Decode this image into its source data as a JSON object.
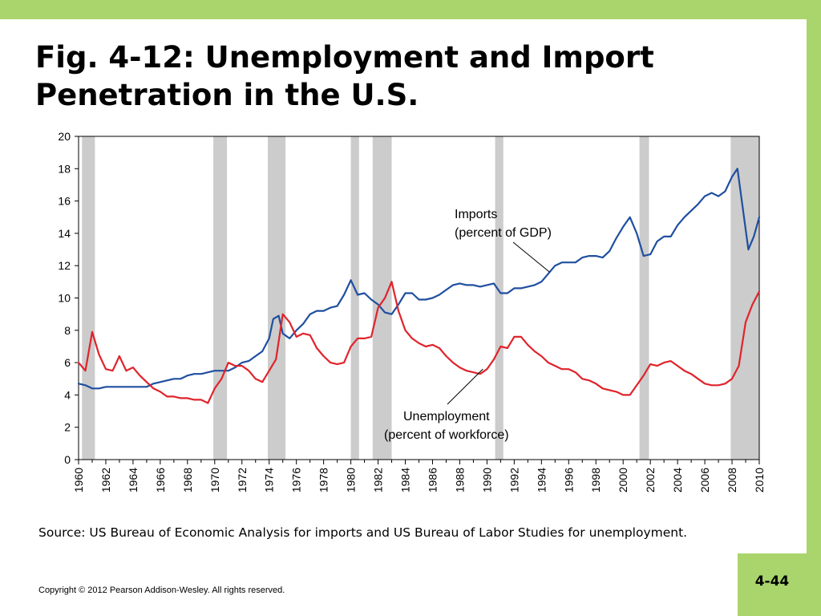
{
  "slide": {
    "title": "Fig. 4-12: Unemployment and Import Penetration in the U.S.",
    "source": "Source: US Bureau of Economic Analysis for imports and US Bureau of Labor Studies for unemployment.",
    "copyright": "Copyright © 2012 Pearson Addison-Wesley. All rights reserved.",
    "page_number": "4-44",
    "colors": {
      "frame": "#aad46c",
      "recession": "#cccccc"
    }
  },
  "chart_data": {
    "type": "line",
    "title": "",
    "xlabel": "",
    "ylabel": "",
    "xlim": [
      1960,
      2010
    ],
    "ylim": [
      0,
      20
    ],
    "y_ticks": [
      0,
      2,
      4,
      6,
      8,
      10,
      12,
      14,
      16,
      18,
      20
    ],
    "x_tick_labels": [
      "1960",
      "1962",
      "1964",
      "1966",
      "1968",
      "1970",
      "1972",
      "1974",
      "1976",
      "1978",
      "1980",
      "1982",
      "1984",
      "1986",
      "1988",
      "1990",
      "1992",
      "1994",
      "1996",
      "1998",
      "2000",
      "2002",
      "2004",
      "2006",
      "2008",
      "2010"
    ],
    "grid": false,
    "legend": "none",
    "recession_bands": [
      [
        1960.25,
        1961.2
      ],
      [
        1969.9,
        1970.9
      ],
      [
        1973.9,
        1975.2
      ],
      [
        1980.0,
        1980.6
      ],
      [
        1981.6,
        1983.0
      ],
      [
        1990.6,
        1991.2
      ],
      [
        2001.2,
        2001.9
      ],
      [
        2007.9,
        2010.0
      ]
    ],
    "series": [
      {
        "name": "Imports",
        "annotation": [
          "Imports",
          "(percent of GDP)"
        ],
        "color": "#1f4fa0",
        "x": [
          1960,
          1960.5,
          1961,
          1961.5,
          1962,
          1962.5,
          1963,
          1963.5,
          1964,
          1964.5,
          1965,
          1965.5,
          1966,
          1966.5,
          1967,
          1967.5,
          1968,
          1968.5,
          1969,
          1969.5,
          1970,
          1970.5,
          1971,
          1971.5,
          1972,
          1972.5,
          1973,
          1973.5,
          1974,
          1974.3,
          1974.7,
          1975,
          1975.5,
          1976,
          1976.5,
          1977,
          1977.5,
          1978,
          1978.5,
          1979,
          1979.5,
          1980,
          1980.5,
          1981,
          1981.5,
          1982,
          1982.5,
          1983,
          1983.5,
          1984,
          1984.5,
          1985,
          1985.5,
          1986,
          1986.5,
          1987,
          1987.5,
          1988,
          1988.5,
          1989,
          1989.5,
          1990,
          1990.5,
          1991,
          1991.5,
          1992,
          1992.5,
          1993,
          1993.5,
          1994,
          1994.5,
          1995,
          1995.5,
          1996,
          1996.5,
          1997,
          1997.5,
          1998,
          1998.5,
          1999,
          1999.5,
          2000,
          2000.5,
          2001,
          2001.5,
          2002,
          2002.5,
          2003,
          2003.5,
          2004,
          2004.5,
          2005,
          2005.5,
          2006,
          2006.5,
          2007,
          2007.5,
          2008,
          2008.4,
          2008.8,
          2009.2,
          2009.6,
          2010
        ],
        "values": [
          4.7,
          4.6,
          4.4,
          4.4,
          4.5,
          4.5,
          4.5,
          4.5,
          4.5,
          4.5,
          4.5,
          4.7,
          4.8,
          4.9,
          5.0,
          5.0,
          5.2,
          5.3,
          5.3,
          5.4,
          5.5,
          5.5,
          5.5,
          5.7,
          6.0,
          6.1,
          6.4,
          6.7,
          7.5,
          8.7,
          8.9,
          7.8,
          7.5,
          8.0,
          8.4,
          9.0,
          9.2,
          9.2,
          9.4,
          9.5,
          10.2,
          11.1,
          10.2,
          10.3,
          9.9,
          9.6,
          9.1,
          9.0,
          9.6,
          10.3,
          10.3,
          9.9,
          9.9,
          10.0,
          10.2,
          10.5,
          10.8,
          10.9,
          10.8,
          10.8,
          10.7,
          10.8,
          10.9,
          10.3,
          10.3,
          10.6,
          10.6,
          10.7,
          10.8,
          11.0,
          11.5,
          12.0,
          12.2,
          12.2,
          12.2,
          12.5,
          12.6,
          12.6,
          12.5,
          12.9,
          13.7,
          14.4,
          15.0,
          14.0,
          12.6,
          12.7,
          13.5,
          13.8,
          13.8,
          14.5,
          15.0,
          15.4,
          15.8,
          16.3,
          16.5,
          16.3,
          16.6,
          17.5,
          18.0,
          15.5,
          13.0,
          13.8,
          15.0
        ],
        "values_note": "approximate readings"
      },
      {
        "name": "Unemployment",
        "annotation": [
          "Unemployment",
          "(percent of workforce)"
        ],
        "color": "#e0232b",
        "x": [
          1960,
          1960.5,
          1961,
          1961.5,
          1962,
          1962.5,
          1963,
          1963.5,
          1964,
          1964.5,
          1965,
          1965.5,
          1966,
          1966.5,
          1967,
          1967.5,
          1968,
          1968.5,
          1969,
          1969.5,
          1970,
          1970.5,
          1971,
          1971.5,
          1972,
          1972.5,
          1973,
          1973.5,
          1974,
          1974.5,
          1975,
          1975.5,
          1976,
          1976.5,
          1977,
          1977.5,
          1978,
          1978.5,
          1979,
          1979.5,
          1980,
          1980.5,
          1981,
          1981.5,
          1982,
          1982.5,
          1983,
          1983.5,
          1984,
          1984.5,
          1985,
          1985.5,
          1986,
          1986.5,
          1987,
          1987.5,
          1988,
          1988.5,
          1989,
          1989.5,
          1990,
          1990.5,
          1991,
          1991.5,
          1992,
          1992.5,
          1993,
          1993.5,
          1994,
          1994.5,
          1995,
          1995.5,
          1996,
          1996.5,
          1997,
          1997.5,
          1998,
          1998.5,
          1999,
          1999.5,
          2000,
          2000.5,
          2001,
          2001.5,
          2002,
          2002.5,
          2003,
          2003.5,
          2004,
          2004.5,
          2005,
          2005.5,
          2006,
          2006.5,
          2007,
          2007.5,
          2008,
          2008.5,
          2009,
          2009.5,
          2010
        ],
        "values": [
          6.0,
          5.5,
          7.9,
          6.5,
          5.6,
          5.5,
          6.4,
          5.5,
          5.7,
          5.2,
          4.8,
          4.4,
          4.2,
          3.9,
          3.9,
          3.8,
          3.8,
          3.7,
          3.7,
          3.5,
          4.4,
          5.0,
          6.0,
          5.8,
          5.8,
          5.5,
          5.0,
          4.8,
          5.5,
          6.2,
          9.0,
          8.5,
          7.6,
          7.8,
          7.7,
          6.9,
          6.4,
          6.0,
          5.9,
          6.0,
          7.0,
          7.5,
          7.5,
          7.6,
          9.4,
          10.0,
          11.0,
          9.2,
          8.0,
          7.5,
          7.2,
          7.0,
          7.1,
          6.9,
          6.4,
          6.0,
          5.7,
          5.5,
          5.4,
          5.3,
          5.6,
          6.2,
          7.0,
          6.9,
          7.6,
          7.6,
          7.1,
          6.7,
          6.4,
          6.0,
          5.8,
          5.6,
          5.6,
          5.4,
          5.0,
          4.9,
          4.7,
          4.4,
          4.3,
          4.2,
          4.0,
          4.0,
          4.6,
          5.2,
          5.9,
          5.8,
          6.0,
          6.1,
          5.8,
          5.5,
          5.3,
          5.0,
          4.7,
          4.6,
          4.6,
          4.7,
          5.0,
          5.8,
          8.5,
          9.6,
          10.4
        ],
        "values_note": "approximate readings"
      }
    ]
  }
}
